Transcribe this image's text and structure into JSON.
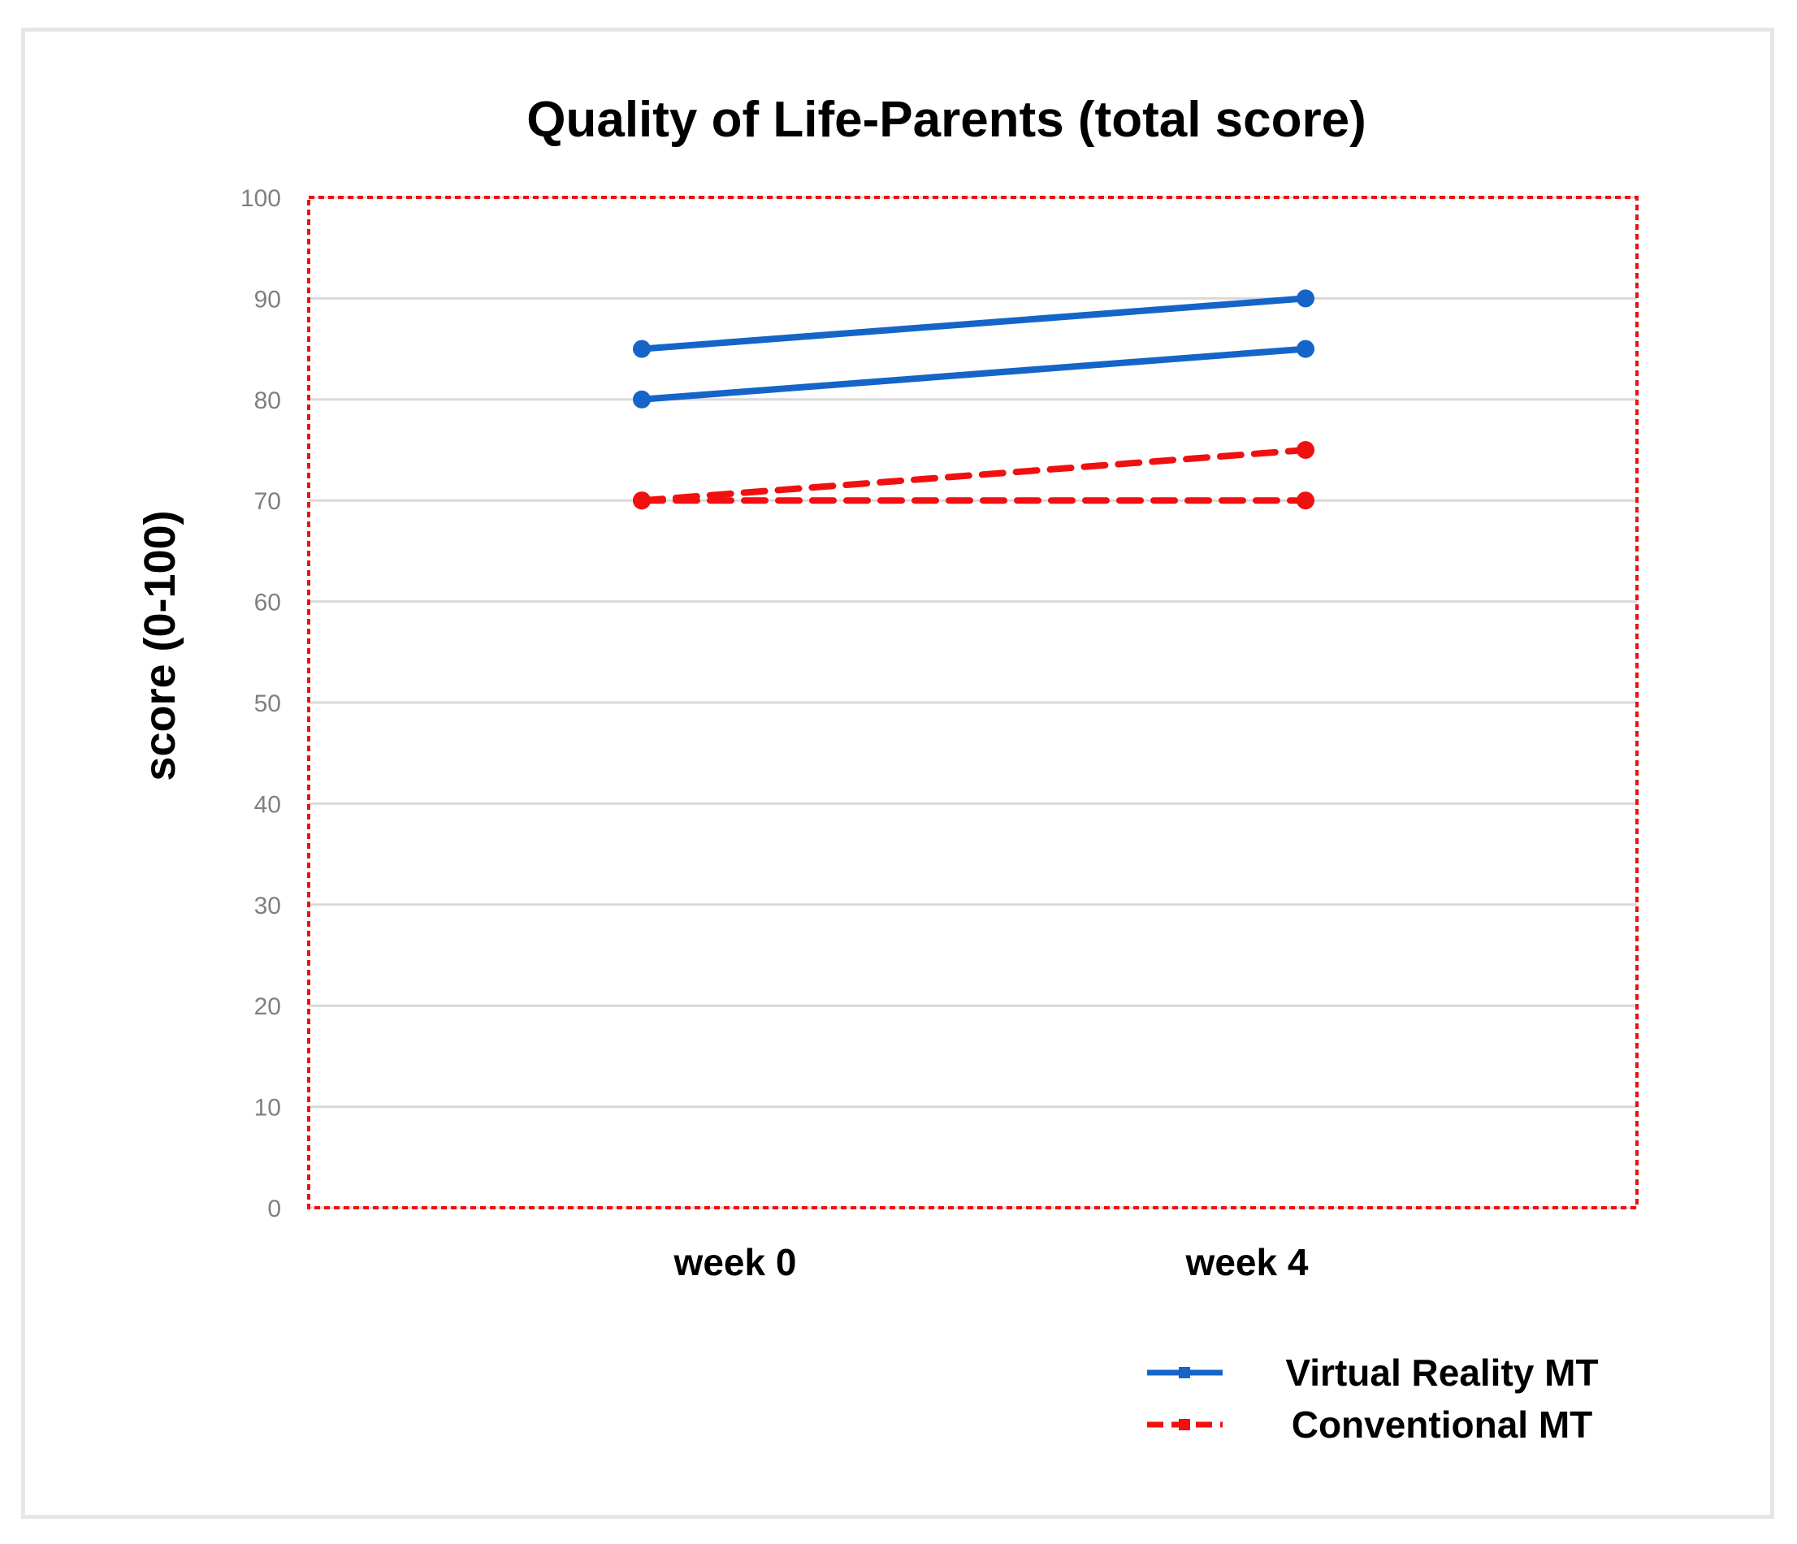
{
  "chart_data": {
    "type": "line",
    "title": "Quality of Life-Parents (total score)",
    "xlabel": "",
    "ylabel": "score (0-100)",
    "categories": [
      "week 0",
      "week 4"
    ],
    "ylim": [
      0,
      100
    ],
    "yticks": [
      0,
      10,
      20,
      30,
      40,
      50,
      60,
      70,
      80,
      90,
      100
    ],
    "grid": true,
    "legend_position": "bottom-right",
    "legend": [
      {
        "name": "Virtual Reality MT",
        "color": "#1565c8",
        "style": "solid"
      },
      {
        "name": "Conventional MT",
        "color": "#f01010",
        "style": "dashed"
      }
    ],
    "series": [
      {
        "name": "Virtual Reality MT",
        "values": [
          85,
          90
        ],
        "color": "#1565c8",
        "style": "solid"
      },
      {
        "name": "Virtual Reality MT",
        "values": [
          80,
          85
        ],
        "color": "#1565c8",
        "style": "solid"
      },
      {
        "name": "Conventional MT",
        "values": [
          70,
          75
        ],
        "color": "#f01010",
        "style": "dashed"
      },
      {
        "name": "Conventional MT",
        "values": [
          70,
          70
        ],
        "color": "#f01010",
        "style": "dashed"
      }
    ],
    "plot_border_color": "#f01010"
  }
}
